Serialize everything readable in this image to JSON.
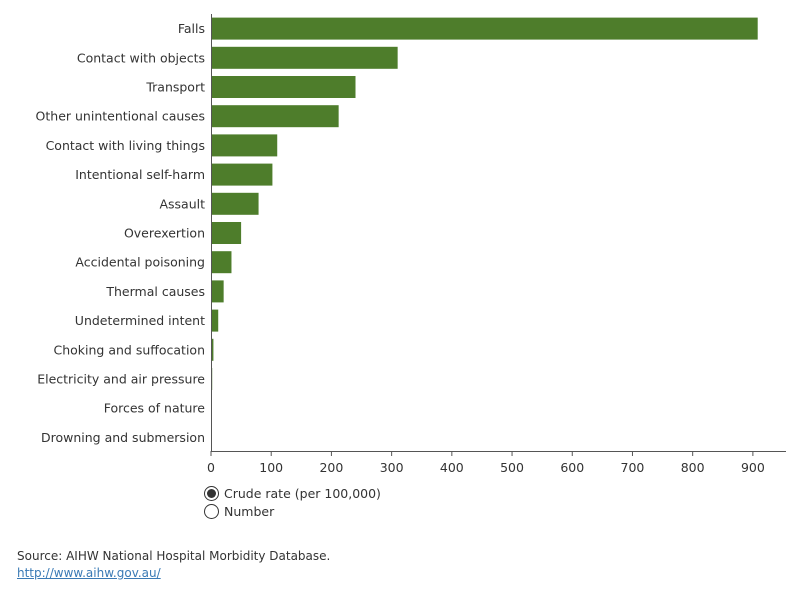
{
  "chart_data": {
    "type": "bar",
    "orientation": "horizontal",
    "categories": [
      "Falls",
      "Contact with objects",
      "Transport",
      "Other unintentional causes",
      "Contact with living things",
      "Intentional self-harm",
      "Assault",
      "Overexertion",
      "Accidental poisoning",
      "Thermal causes",
      "Undetermined intent",
      "Choking and suffocation",
      "Electricity and air pressure",
      "Forces of nature",
      "Drowning and submersion"
    ],
    "values": [
      908,
      310,
      240,
      212,
      110,
      102,
      79,
      50,
      34,
      21,
      12,
      4,
      2,
      0.4,
      0.4
    ],
    "xticks": [
      "0",
      "100",
      "200",
      "300",
      "400",
      "500",
      "600",
      "700",
      "800",
      "900"
    ],
    "xlim": [
      0,
      955
    ],
    "bar_color": "#4e7d2b",
    "grid": false
  },
  "controls": {
    "measure_options": [
      "Crude rate (per 100,000)",
      "Number"
    ],
    "selected_index": 0
  },
  "footer": {
    "source": "Source: AIHW National Hospital Morbidity Database.",
    "link": "http://www.aihw.gov.au/"
  }
}
